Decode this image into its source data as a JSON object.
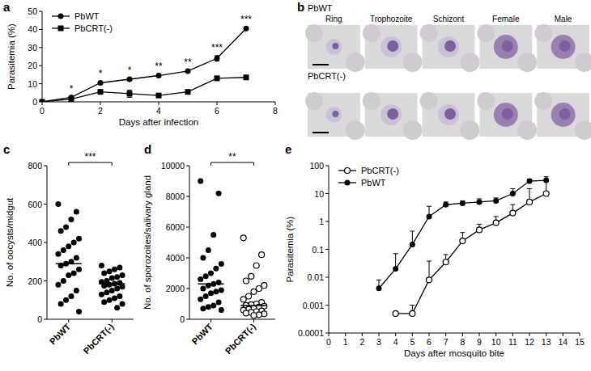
{
  "chart_data": [
    {
      "type": "line",
      "panel": "a",
      "x_label": "Days after infection",
      "y_label": "Parasitemia (%)",
      "x": [
        0,
        1,
        2,
        3,
        4,
        5,
        6,
        7
      ],
      "xlim": [
        0,
        8
      ],
      "xticks": [
        0,
        2,
        4,
        6,
        8
      ],
      "ylim": [
        0,
        50
      ],
      "yticks": [
        0,
        10,
        20,
        30,
        40,
        50
      ],
      "legend": "top-left",
      "series": [
        {
          "name": "PbWT",
          "color": "#000000",
          "marker": "circle",
          "line_style": "solid",
          "values": [
            0,
            2.5,
            10.5,
            12.5,
            14.5,
            17,
            24,
            40.5
          ],
          "errors": [
            0,
            0.3,
            0.5,
            0.5,
            0.6,
            0.5,
            1.5,
            0.5
          ]
        },
        {
          "name": "PbCRT(-)",
          "color": "#000000",
          "marker": "square",
          "line_style": "solid",
          "values": [
            0,
            1.5,
            5.5,
            4.5,
            3.5,
            5.5,
            13,
            13.5
          ],
          "errors": [
            0,
            0.3,
            0.5,
            2,
            0.5,
            0.5,
            1,
            0.5
          ]
        }
      ],
      "annotations": [
        {
          "x": 1,
          "text": "*"
        },
        {
          "x": 2,
          "text": "*"
        },
        {
          "x": 3,
          "text": "*"
        },
        {
          "x": 4,
          "text": "**"
        },
        {
          "x": 5,
          "text": "**"
        },
        {
          "x": 6,
          "text": "***"
        },
        {
          "x": 7,
          "text": "***"
        }
      ]
    },
    {
      "type": "strip",
      "panel": "c",
      "y_label": "No. of oocysts/midgut",
      "categories": [
        "PbWT",
        "PbCRT(-)"
      ],
      "ylim": [
        0,
        800
      ],
      "yticks": [
        0,
        200,
        400,
        600,
        800
      ],
      "groups": [
        {
          "marker": "circle",
          "color": "#000000",
          "median": 290,
          "values": [
            600,
            560,
            520,
            480,
            460,
            420,
            400,
            380,
            360,
            340,
            320,
            300,
            290,
            280,
            260,
            240,
            230,
            200,
            180,
            150,
            120,
            100,
            80,
            40
          ]
        },
        {
          "marker": "circle",
          "color": "#000000",
          "median": 185,
          "values": [
            280,
            270,
            260,
            250,
            240,
            230,
            220,
            215,
            200,
            195,
            190,
            185,
            180,
            175,
            170,
            160,
            150,
            140,
            130,
            120,
            110,
            100,
            90,
            80,
            60
          ]
        }
      ],
      "annotations": [
        {
          "text": "***"
        }
      ]
    },
    {
      "type": "strip",
      "panel": "d",
      "y_label": "No. of sporozoites/salivary gland",
      "categories": [
        "PbWT",
        "PbCRT(-)"
      ],
      "ylim": [
        0,
        10000
      ],
      "yticks": [
        0,
        2000,
        4000,
        6000,
        8000,
        10000
      ],
      "groups": [
        {
          "marker": "circle",
          "color": "#000000",
          "median": 2300,
          "values": [
            9000,
            8200,
            5500,
            4500,
            4000,
            3600,
            3300,
            3000,
            2800,
            2600,
            2400,
            2300,
            2200,
            2000,
            1900,
            1800,
            1700,
            1500,
            1300,
            1100,
            900,
            800,
            700,
            600
          ]
        },
        {
          "marker": "open-circle",
          "color": "#000000",
          "median": 900,
          "values": [
            5300,
            4200,
            3500,
            2800,
            2500,
            2200,
            2000,
            1800,
            1500,
            1300,
            1100,
            1000,
            950,
            900,
            850,
            800,
            700,
            650,
            600,
            550,
            500,
            450,
            400,
            350,
            300,
            250
          ]
        }
      ],
      "annotations": [
        {
          "text": "**"
        }
      ]
    },
    {
      "type": "line",
      "panel": "e",
      "x_label": "Days after mosquito bite",
      "y_label": "Parasitemia (%)",
      "log": "y",
      "xlim": [
        0,
        15
      ],
      "xticks": [
        0,
        1,
        2,
        3,
        4,
        5,
        6,
        7,
        8,
        9,
        10,
        11,
        12,
        13,
        14,
        15
      ],
      "ylim": [
        0.0001,
        100
      ],
      "yticks": [
        0.0001,
        0.001,
        0.01,
        0.1,
        1,
        10,
        100
      ],
      "legend": "top-left",
      "series": [
        {
          "name": "PbCRT(-)",
          "color": "#000000",
          "marker": "open-circle",
          "line_style": "solid",
          "x": [
            4,
            5,
            6,
            7,
            8,
            9,
            10,
            11,
            12,
            13
          ],
          "values": [
            0.0005,
            0.0005,
            0.008,
            0.035,
            0.2,
            0.5,
            0.9,
            2,
            5,
            10
          ],
          "errors": [
            0,
            0.0005,
            0.03,
            0.03,
            0.2,
            0.3,
            0.6,
            2,
            10,
            20
          ]
        },
        {
          "name": "PbWT",
          "color": "#000000",
          "marker": "circle",
          "line_style": "solid",
          "x": [
            3,
            4,
            5,
            6,
            7,
            8,
            9,
            10,
            11,
            12,
            13
          ],
          "values": [
            0.004,
            0.02,
            0.15,
            1.5,
            4,
            4.5,
            5,
            5.5,
            10,
            28,
            30
          ],
          "errors": [
            0.004,
            0.05,
            0.3,
            2,
            1,
            1,
            1.5,
            1.5,
            5,
            5,
            10
          ]
        }
      ]
    }
  ],
  "image_panel": {
    "panel": "b",
    "rows": [
      "PbWT",
      "PbCRT(-)"
    ],
    "columns": [
      "Ring",
      "Trophozoite",
      "Schizont",
      "Female",
      "Male"
    ]
  }
}
